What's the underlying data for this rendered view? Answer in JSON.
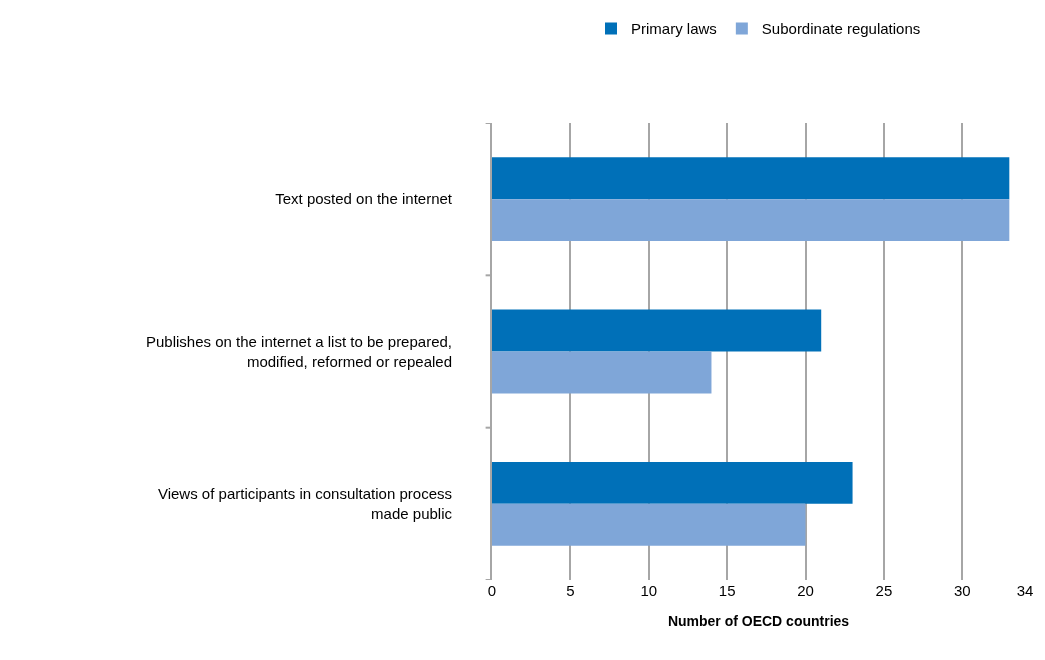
{
  "chart_data": {
    "type": "bar",
    "orientation": "horizontal",
    "categories": [
      "Text posted on the internet",
      "Publishes on the internet a list to be prepared, modified, reformed or repealed",
      "Views of participants in consultation process made public"
    ],
    "series": [
      {
        "name": "Primary laws",
        "color": "#0070b8",
        "values": [
          33,
          21,
          23
        ]
      },
      {
        "name": "Subordinate regulations",
        "color": "#7fa6d8",
        "values": [
          33,
          14,
          20
        ]
      }
    ],
    "xlabel": "Number of OECD countries",
    "xlim": [
      0,
      34
    ],
    "xticks": [
      0,
      5,
      10,
      15,
      20,
      25,
      30,
      34
    ],
    "grid": "x",
    "legend": "top"
  }
}
